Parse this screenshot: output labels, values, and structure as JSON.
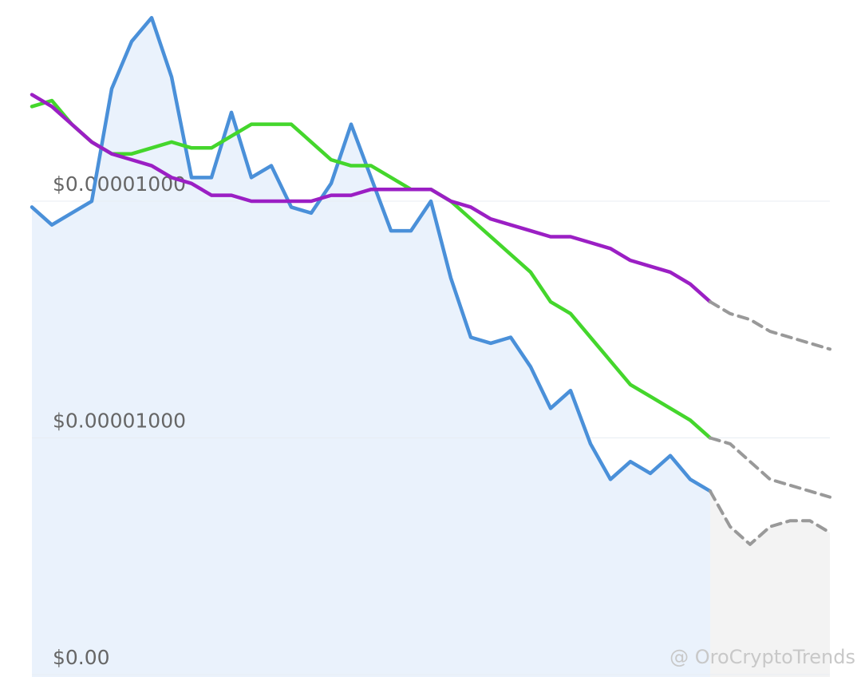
{
  "chart_data": {
    "type": "line",
    "categories": [
      null,
      null,
      null,
      null,
      null,
      null,
      null,
      null,
      null,
      null,
      null,
      null,
      null,
      null,
      null,
      null,
      null,
      null,
      null,
      null,
      null,
      null,
      null,
      null,
      null,
      null,
      null,
      null,
      null,
      null,
      null,
      null,
      null,
      null,
      null,
      null,
      null,
      null,
      null,
      null,
      null
    ],
    "ylim": [
      9.9996e-06,
      1.000074e-05
    ],
    "yticks": [
      {
        "value": 9.9996e-06,
        "label": "$0.00"
      },
      {
        "value": 1e-05,
        "label": "$0.00001000"
      },
      {
        "value": 1.00004e-05,
        "label": "$0.00001000"
      }
    ],
    "grid": true,
    "watermark": "@ OroCryptoTrends",
    "series": [
      {
        "color": "#4a90d9",
        "fill": "#eaf2fc",
        "dashed": false,
        "values": [
          1.000039e-05,
          1.000036e-05,
          1.000038e-05,
          1.00004e-05,
          1.000059e-05,
          1.000067e-05,
          1.000071e-05,
          1.000061e-05,
          1.000044e-05,
          1.000044e-05,
          1.000055e-05,
          1.000044e-05,
          1.000046e-05,
          1.000039e-05,
          1.000038e-05,
          1.000043e-05,
          1.000053e-05,
          1.000044e-05,
          1.000035e-05,
          1.000035e-05,
          1.00004e-05,
          1.000027e-05,
          1.000017e-05,
          1.000016e-05,
          1.000017e-05,
          1.000012e-05,
          1.000005e-05,
          1.000008e-05,
          9.99999e-06,
          9.99993e-06,
          9.99996e-06,
          9.99994e-06,
          9.99997e-06,
          9.99993e-06,
          9.99991e-06,
          null,
          null,
          null,
          null,
          null,
          null
        ]
      },
      {
        "color": "#999999",
        "fill": "#f3f3f3",
        "dashed": true,
        "values": [
          null,
          null,
          null,
          null,
          null,
          null,
          null,
          null,
          null,
          null,
          null,
          null,
          null,
          null,
          null,
          null,
          null,
          null,
          null,
          null,
          null,
          null,
          null,
          null,
          null,
          null,
          null,
          null,
          null,
          null,
          null,
          null,
          null,
          null,
          9.99991e-06,
          9.99985e-06,
          9.99982e-06,
          9.99985e-06,
          9.99986e-06,
          9.99986e-06,
          9.99984e-06
        ]
      },
      {
        "color": "#44d62c",
        "dashed": false,
        "values": [
          1.000056e-05,
          1.000057e-05,
          1.000053e-05,
          1.00005e-05,
          1.000048e-05,
          1.000048e-05,
          1.000049e-05,
          1.00005e-05,
          1.000049e-05,
          1.000049e-05,
          1.000051e-05,
          1.000053e-05,
          1.000053e-05,
          1.000053e-05,
          1.00005e-05,
          1.000047e-05,
          1.000046e-05,
          1.000046e-05,
          1.000044e-05,
          1.000042e-05,
          1.000042e-05,
          1.00004e-05,
          1.000037e-05,
          1.000034e-05,
          1.000031e-05,
          1.000028e-05,
          1.000023e-05,
          1.000021e-05,
          1.000017e-05,
          1.000013e-05,
          1.000009e-05,
          1.000007e-05,
          1.000005e-05,
          1.000003e-05,
          1e-05,
          null,
          null,
          null,
          null,
          null,
          null
        ]
      },
      {
        "color": "#999999",
        "dashed": true,
        "values": [
          null,
          null,
          null,
          null,
          null,
          null,
          null,
          null,
          null,
          null,
          null,
          null,
          null,
          null,
          null,
          null,
          null,
          null,
          null,
          null,
          null,
          null,
          null,
          null,
          null,
          null,
          null,
          null,
          null,
          null,
          null,
          null,
          null,
          null,
          1e-05,
          9.99999e-06,
          9.99996e-06,
          9.99993e-06,
          9.99992e-06,
          9.99991e-06,
          9.9999e-06
        ]
      },
      {
        "color": "#9b1fc4",
        "dashed": false,
        "values": [
          1.000058e-05,
          1.000056e-05,
          1.000053e-05,
          1.00005e-05,
          1.000048e-05,
          1.000047e-05,
          1.000046e-05,
          1.000044e-05,
          1.000043e-05,
          1.000041e-05,
          1.000041e-05,
          1.00004e-05,
          1.00004e-05,
          1.00004e-05,
          1.00004e-05,
          1.000041e-05,
          1.000041e-05,
          1.000042e-05,
          1.000042e-05,
          1.000042e-05,
          1.000042e-05,
          1.00004e-05,
          1.000039e-05,
          1.000037e-05,
          1.000036e-05,
          1.000035e-05,
          1.000034e-05,
          1.000034e-05,
          1.000033e-05,
          1.000032e-05,
          1.00003e-05,
          1.000029e-05,
          1.000028e-05,
          1.000026e-05,
          1.000023e-05,
          null,
          null,
          null,
          null,
          null,
          null
        ]
      },
      {
        "color": "#999999",
        "dashed": true,
        "values": [
          null,
          null,
          null,
          null,
          null,
          null,
          null,
          null,
          null,
          null,
          null,
          null,
          null,
          null,
          null,
          null,
          null,
          null,
          null,
          null,
          null,
          null,
          null,
          null,
          null,
          null,
          null,
          null,
          null,
          null,
          null,
          null,
          null,
          null,
          1.000023e-05,
          1.000021e-05,
          1.00002e-05,
          1.000018e-05,
          1.000017e-05,
          1.000016e-05,
          1.000015e-05
        ]
      }
    ]
  }
}
